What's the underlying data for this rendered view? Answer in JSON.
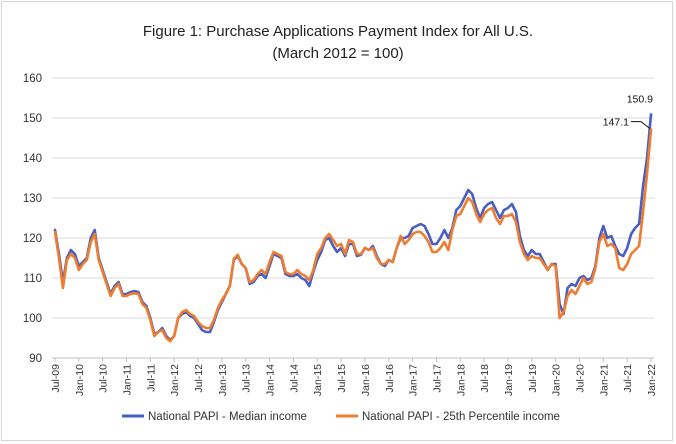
{
  "chart_data": {
    "type": "line",
    "title": "Figure 1: Purchase Applications Payment Index for All U.S.",
    "subtitle": "(March 2012 = 100)",
    "xlabel": "",
    "ylabel": "",
    "ylim": [
      90,
      160
    ],
    "yticks": [
      90,
      100,
      110,
      120,
      130,
      140,
      150,
      160
    ],
    "x_start": "2009-07",
    "xtick_labels": [
      "Jul-09",
      "Jan-10",
      "Jul-10",
      "Jan-11",
      "Jul-11",
      "Jan-12",
      "Jul-12",
      "Jan-13",
      "Jul-13",
      "Jan-14",
      "Jul-14",
      "Jan-15",
      "Jul-15",
      "Jan-16",
      "Jul-16",
      "Jan-17",
      "Jul-17",
      "Jan-18",
      "Jul-18",
      "Jan-19",
      "Jul-19",
      "Jan-20",
      "Jul-20",
      "Jan-21",
      "Jul-21",
      "Jan-22"
    ],
    "grid": "horizontal",
    "legend_position": "bottom",
    "colors": {
      "median": "#4a5fc1",
      "p25": "#ed7d31"
    },
    "series": [
      {
        "name": "National PAPI - Median income",
        "color": "#4a5fc1",
        "values": [
          122,
          116,
          109,
          115,
          117,
          116,
          113,
          114,
          115,
          120,
          122,
          115,
          112,
          109,
          106,
          108,
          109,
          106,
          106,
          106.5,
          106.7,
          106.5,
          104,
          103,
          100,
          96,
          96.5,
          97.5,
          95.5,
          94.5,
          95.5,
          100,
          101,
          101.5,
          100.5,
          100,
          98.5,
          97,
          96.5,
          96.5,
          99,
          102,
          104,
          106,
          108,
          114.5,
          115.5,
          113.5,
          112.5,
          108.5,
          109,
          110.5,
          111,
          110,
          113,
          116,
          115.5,
          115,
          111,
          110.5,
          110.5,
          111,
          110,
          109.5,
          108,
          111.5,
          114.5,
          116.5,
          119.5,
          120,
          118,
          116.5,
          117.5,
          115.5,
          118.5,
          118.5,
          115.5,
          115.8,
          117.5,
          117,
          118,
          115.5,
          113.5,
          113,
          114.5,
          114,
          117.5,
          120,
          120,
          120.5,
          122.5,
          123,
          123.5,
          123,
          121,
          118.5,
          118.5,
          120,
          122,
          120,
          122.5,
          127,
          128,
          130,
          132,
          131,
          127.5,
          125,
          127.5,
          128.5,
          129,
          127,
          125,
          127,
          127.5,
          128.5,
          126.5,
          120.5,
          117,
          115.5,
          117,
          116,
          116,
          114,
          112,
          113.5,
          113.5,
          103.5,
          101,
          107.5,
          108.5,
          108,
          110,
          110.5,
          109.5,
          110,
          113,
          120,
          123,
          120,
          120.5,
          118,
          116,
          115.5,
          117.5,
          121,
          122.5,
          123.5,
          133,
          140,
          150.9
        ]
      },
      {
        "name": "National PAPI - 25th Percentile income",
        "color": "#ed7d31",
        "values": [
          121.5,
          115,
          107.5,
          114.5,
          116,
          115,
          112,
          113.5,
          114.5,
          119,
          121,
          114.5,
          111.5,
          108.5,
          105.5,
          107.5,
          108.5,
          105.5,
          105.5,
          106,
          106.2,
          106,
          103.5,
          102.5,
          99.5,
          95.5,
          96.5,
          97,
          95,
          94.2,
          95.5,
          100,
          101.5,
          102,
          101,
          100.5,
          99,
          98,
          97.5,
          97.5,
          99.5,
          102.5,
          104.5,
          106,
          108,
          114.8,
          115.8,
          113.5,
          112.5,
          109,
          109.5,
          111,
          112,
          111,
          114,
          116.5,
          116,
          115.5,
          111.5,
          111,
          111,
          112,
          111,
          110.5,
          109.5,
          112,
          116,
          117.5,
          120,
          121,
          119.5,
          118,
          118.5,
          116,
          119.5,
          119,
          116,
          116,
          117.5,
          117,
          117.5,
          115,
          113.5,
          113.5,
          114.5,
          114,
          117.5,
          120.5,
          118.5,
          119.5,
          121,
          121.5,
          121.5,
          120.5,
          119,
          116.5,
          116.5,
          117.5,
          119,
          117,
          122,
          125.5,
          126,
          128,
          130,
          129,
          126,
          124,
          126,
          127,
          127.5,
          125,
          123.5,
          125.5,
          125.5,
          126,
          124,
          119,
          116,
          114.5,
          115.5,
          115,
          115,
          113.5,
          112,
          113.5,
          113,
          100,
          101.5,
          105.5,
          107,
          106,
          108,
          110,
          108.5,
          109,
          112.5,
          119,
          121,
          118,
          118.5,
          117.5,
          112.5,
          112,
          113.5,
          116,
          117,
          118,
          126.5,
          136,
          147.1
        ]
      }
    ],
    "annotations": [
      {
        "text": "150.9",
        "series": 0,
        "point": "last"
      },
      {
        "text": "147.1",
        "series": 1,
        "point": "last"
      }
    ]
  }
}
